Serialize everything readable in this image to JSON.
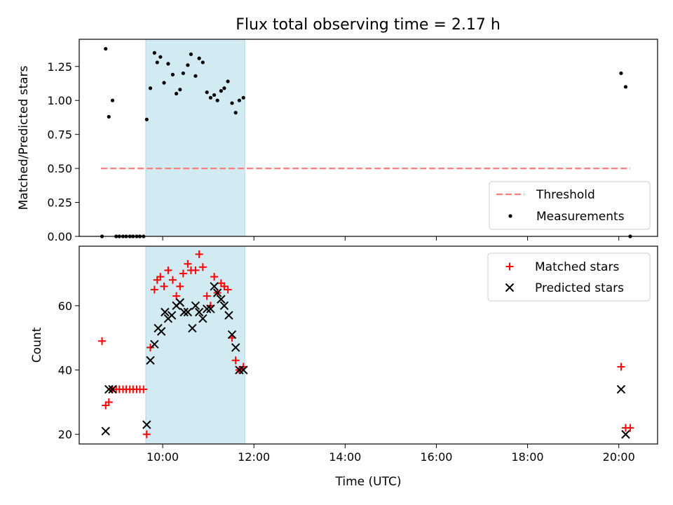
{
  "title": "Flux total observing time = 2.17 h",
  "colors": {
    "window_fill": "#add8e6",
    "threshold": "#ff7f7f",
    "measurement": "#000000",
    "matched": "#ff0000",
    "predicted": "#000000"
  },
  "chart_data": [
    {
      "type": "scatter",
      "ylabel": "Matched/Predicted stars",
      "xlim": [
        8.17,
        20.85
      ],
      "ylim": [
        0.0,
        1.45
      ],
      "yticks": [
        0.0,
        0.25,
        0.5,
        0.75,
        1.0,
        1.25
      ],
      "yticklabels": [
        "0.00",
        "0.25",
        "0.50",
        "0.75",
        "1.00",
        "1.25"
      ],
      "observing_window": [
        9.63,
        11.8
      ],
      "threshold": {
        "name": "Threshold",
        "y": 0.5,
        "x": [
          8.65,
          20.25
        ]
      },
      "legend": [
        "Threshold",
        "Measurements"
      ],
      "legend_position": "lower-right",
      "series": [
        {
          "name": "Measurements",
          "marker": "dot",
          "points": [
            [
              8.67,
              0.0
            ],
            [
              8.75,
              1.38
            ],
            [
              8.82,
              0.88
            ],
            [
              8.9,
              1.0
            ],
            [
              8.98,
              0.0
            ],
            [
              9.05,
              0.0
            ],
            [
              9.13,
              0.0
            ],
            [
              9.2,
              0.0
            ],
            [
              9.28,
              0.0
            ],
            [
              9.35,
              0.0
            ],
            [
              9.43,
              0.0
            ],
            [
              9.5,
              0.0
            ],
            [
              9.58,
              0.0
            ],
            [
              9.65,
              0.86
            ],
            [
              9.73,
              1.09
            ],
            [
              9.82,
              1.35
            ],
            [
              9.88,
              1.28
            ],
            [
              9.95,
              1.32
            ],
            [
              10.03,
              1.13
            ],
            [
              10.12,
              1.27
            ],
            [
              10.22,
              1.19
            ],
            [
              10.3,
              1.05
            ],
            [
              10.38,
              1.08
            ],
            [
              10.45,
              1.2
            ],
            [
              10.55,
              1.26
            ],
            [
              10.62,
              1.34
            ],
            [
              10.72,
              1.18
            ],
            [
              10.8,
              1.31
            ],
            [
              10.88,
              1.28
            ],
            [
              10.97,
              1.06
            ],
            [
              11.05,
              1.02
            ],
            [
              11.13,
              1.04
            ],
            [
              11.2,
              1.0
            ],
            [
              11.28,
              1.07
            ],
            [
              11.35,
              1.09
            ],
            [
              11.43,
              1.14
            ],
            [
              11.52,
              0.98
            ],
            [
              11.6,
              0.91
            ],
            [
              11.68,
              1.0
            ],
            [
              11.77,
              1.02
            ],
            [
              20.05,
              1.2
            ],
            [
              20.15,
              1.1
            ],
            [
              20.25,
              0.0
            ]
          ]
        }
      ]
    },
    {
      "type": "scatter",
      "xlabel": "Time (UTC)",
      "ylabel": "Count",
      "xlim": [
        8.17,
        20.85
      ],
      "ylim": [
        17,
        78.5
      ],
      "xticks": [
        10,
        12,
        14,
        16,
        18,
        20
      ],
      "xticklabels": [
        "10:00",
        "12:00",
        "14:00",
        "16:00",
        "18:00",
        "20:00"
      ],
      "yticks": [
        20,
        40,
        60
      ],
      "yticklabels": [
        "20",
        "40",
        "60"
      ],
      "observing_window": [
        9.63,
        11.8
      ],
      "legend": [
        "Matched stars",
        "Predicted stars"
      ],
      "legend_position": "upper-right",
      "series": [
        {
          "name": "Matched stars",
          "marker": "plus",
          "points": [
            [
              8.67,
              49
            ],
            [
              8.75,
              29
            ],
            [
              8.82,
              30
            ],
            [
              8.9,
              34
            ],
            [
              8.98,
              34
            ],
            [
              9.05,
              34
            ],
            [
              9.13,
              34
            ],
            [
              9.2,
              34
            ],
            [
              9.28,
              34
            ],
            [
              9.35,
              34
            ],
            [
              9.43,
              34
            ],
            [
              9.5,
              34
            ],
            [
              9.58,
              34
            ],
            [
              9.65,
              20
            ],
            [
              9.73,
              47
            ],
            [
              9.82,
              65
            ],
            [
              9.88,
              68
            ],
            [
              9.95,
              69
            ],
            [
              10.03,
              66
            ],
            [
              10.12,
              71
            ],
            [
              10.22,
              68
            ],
            [
              10.3,
              63
            ],
            [
              10.38,
              66
            ],
            [
              10.45,
              70
            ],
            [
              10.55,
              73
            ],
            [
              10.62,
              71
            ],
            [
              10.72,
              71
            ],
            [
              10.8,
              76
            ],
            [
              10.88,
              72
            ],
            [
              10.97,
              63
            ],
            [
              11.05,
              60
            ],
            [
              11.13,
              69
            ],
            [
              11.2,
              64
            ],
            [
              11.28,
              67
            ],
            [
              11.35,
              66
            ],
            [
              11.43,
              65
            ],
            [
              11.52,
              50
            ],
            [
              11.6,
              43
            ],
            [
              11.68,
              40
            ],
            [
              11.77,
              41
            ],
            [
              20.05,
              41
            ],
            [
              20.15,
              22
            ],
            [
              20.25,
              22
            ]
          ]
        },
        {
          "name": "Predicted stars",
          "marker": "x",
          "points": [
            [
              8.75,
              21
            ],
            [
              8.82,
              34
            ],
            [
              8.9,
              34
            ],
            [
              9.65,
              23
            ],
            [
              9.73,
              43
            ],
            [
              9.82,
              48
            ],
            [
              9.9,
              53
            ],
            [
              9.97,
              52
            ],
            [
              10.05,
              58
            ],
            [
              10.12,
              56
            ],
            [
              10.2,
              57
            ],
            [
              10.3,
              60
            ],
            [
              10.38,
              61
            ],
            [
              10.47,
              58
            ],
            [
              10.55,
              58
            ],
            [
              10.65,
              53
            ],
            [
              10.72,
              60
            ],
            [
              10.8,
              58
            ],
            [
              10.88,
              56
            ],
            [
              10.97,
              59
            ],
            [
              11.05,
              59
            ],
            [
              11.13,
              66
            ],
            [
              11.2,
              64
            ],
            [
              11.28,
              62
            ],
            [
              11.35,
              60
            ],
            [
              11.45,
              57
            ],
            [
              11.52,
              51
            ],
            [
              11.6,
              47
            ],
            [
              11.68,
              40
            ],
            [
              11.77,
              40
            ],
            [
              20.05,
              34
            ],
            [
              20.15,
              20
            ]
          ]
        }
      ]
    }
  ]
}
